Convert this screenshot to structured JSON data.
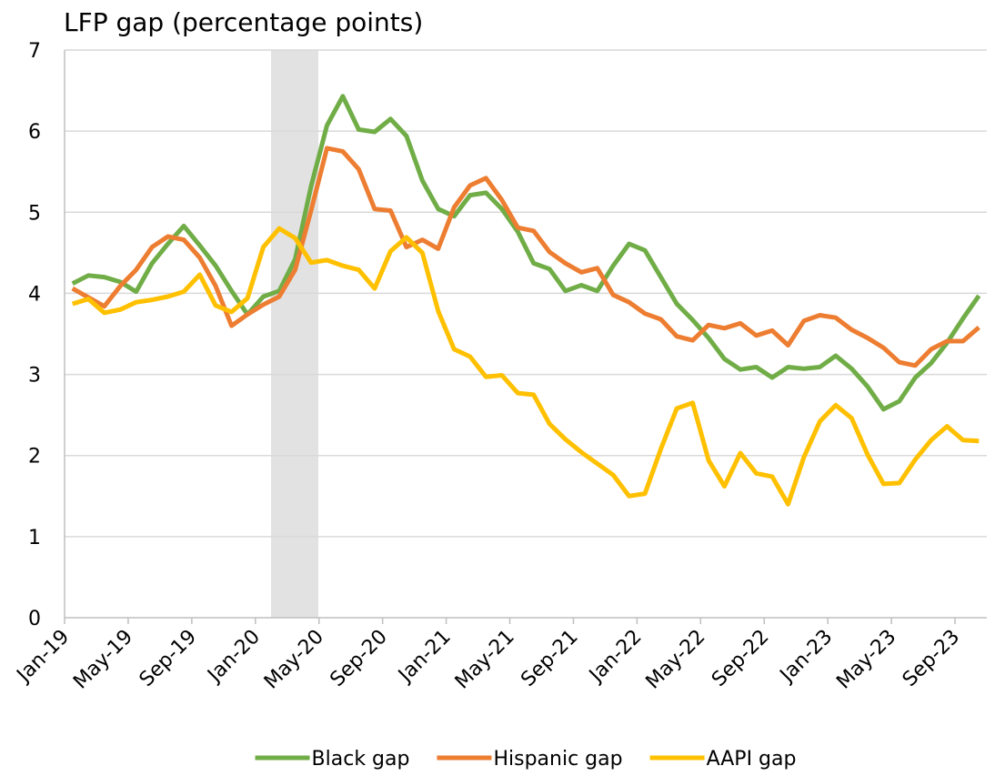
{
  "chart_data": {
    "type": "line",
    "title": "LFP gap (percentage points)",
    "categories": [
      "Jan-19",
      null,
      null,
      null,
      "May-19",
      null,
      null,
      null,
      "Sep-19",
      null,
      null,
      null,
      "Jan-20",
      null,
      null,
      null,
      "May-20",
      null,
      null,
      null,
      "Sep-20",
      null,
      null,
      null,
      "Jan-21",
      null,
      null,
      null,
      "May-21",
      null,
      null,
      null,
      "Sep-21",
      null,
      null,
      null,
      "Jan-22",
      null,
      null,
      null,
      "May-22",
      null,
      null,
      null,
      "Sep-22",
      null,
      null,
      null,
      "Jan-23",
      null,
      null,
      null,
      "May-23",
      null,
      null,
      null,
      "Sep-23",
      null
    ],
    "series": [
      {
        "name": "Black gap",
        "color": "#70ad47",
        "values": [
          4.12,
          4.22,
          4.2,
          4.14,
          4.02,
          4.37,
          4.61,
          4.83,
          4.59,
          4.34,
          4.03,
          3.74,
          3.96,
          4.03,
          4.42,
          5.32,
          6.07,
          6.43,
          6.02,
          5.99,
          6.15,
          5.94,
          5.39,
          5.04,
          4.95,
          5.21,
          5.24,
          5.04,
          4.76,
          4.37,
          4.3,
          4.03,
          4.1,
          4.03,
          4.34,
          4.61,
          4.53,
          4.2,
          3.87,
          3.67,
          3.45,
          3.19,
          3.06,
          3.09,
          2.96,
          3.09,
          3.07,
          3.09,
          3.23,
          3.07,
          2.85,
          2.57,
          2.67,
          2.96,
          3.14,
          3.39,
          3.69,
          3.97
        ]
      },
      {
        "name": "Hispanic gap",
        "color": "#ed7d31",
        "values": [
          4.06,
          3.95,
          3.84,
          4.09,
          4.29,
          4.57,
          4.7,
          4.66,
          4.44,
          4.09,
          3.6,
          3.74,
          3.86,
          3.96,
          4.29,
          5.02,
          5.79,
          5.75,
          5.53,
          5.04,
          5.02,
          4.57,
          4.66,
          4.55,
          5.06,
          5.33,
          5.42,
          5.15,
          4.81,
          4.77,
          4.51,
          4.37,
          4.26,
          4.31,
          3.98,
          3.89,
          3.75,
          3.68,
          3.47,
          3.42,
          3.61,
          3.57,
          3.63,
          3.48,
          3.54,
          3.36,
          3.66,
          3.73,
          3.7,
          3.55,
          3.45,
          3.33,
          3.15,
          3.11,
          3.31,
          3.41,
          3.41,
          3.58
        ]
      },
      {
        "name": "AAPI gap",
        "color": "#ffc000",
        "values": [
          3.87,
          3.93,
          3.76,
          3.8,
          3.89,
          3.92,
          3.96,
          4.02,
          4.23,
          3.85,
          3.77,
          3.94,
          4.57,
          4.8,
          4.68,
          4.38,
          4.41,
          4.34,
          4.29,
          4.06,
          4.52,
          4.69,
          4.5,
          3.78,
          3.31,
          3.22,
          2.97,
          2.99,
          2.77,
          2.75,
          2.39,
          2.2,
          2.04,
          1.9,
          1.76,
          1.5,
          1.53,
          2.08,
          2.58,
          2.65,
          1.94,
          1.62,
          2.03,
          1.78,
          1.74,
          1.4,
          1.98,
          2.42,
          2.62,
          2.46,
          2.01,
          1.65,
          1.66,
          1.95,
          2.19,
          2.36,
          2.19,
          2.18
        ]
      }
    ],
    "ylim": [
      0,
      7
    ],
    "yticks": [
      0,
      1,
      2,
      3,
      4,
      5,
      6,
      7
    ],
    "grid": true,
    "legend": "bottom"
  }
}
